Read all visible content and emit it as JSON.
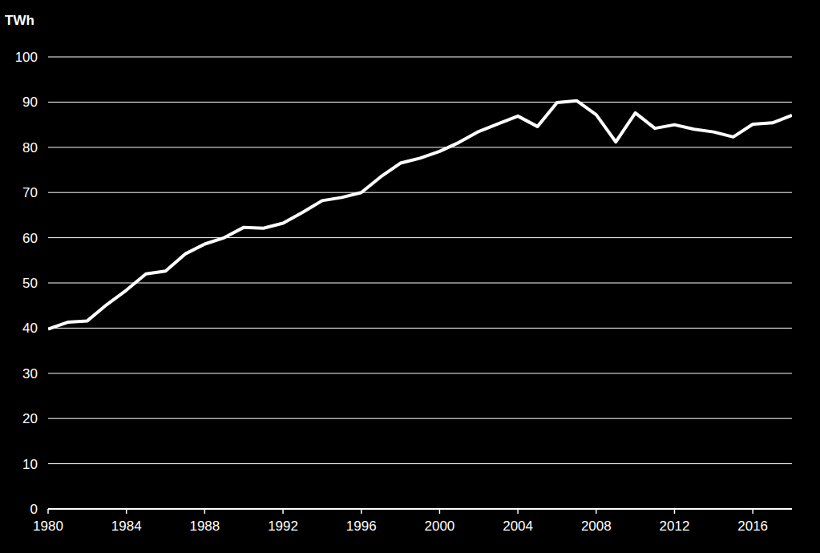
{
  "chart_data": {
    "type": "line",
    "y_label": "TWh",
    "color": "#ffffff",
    "grid": true,
    "x": [
      1980,
      1981,
      1982,
      1983,
      1984,
      1985,
      1986,
      1987,
      1988,
      1989,
      1990,
      1991,
      1992,
      1993,
      1994,
      1995,
      1996,
      1997,
      1998,
      1999,
      2000,
      2001,
      2002,
      2003,
      2004,
      2005,
      2006,
      2007,
      2008,
      2009,
      2010,
      2011,
      2012,
      2013,
      2014,
      2015,
      2016,
      2017,
      2018
    ],
    "values": [
      39.8,
      41.3,
      41.6,
      45.2,
      48.4,
      52.0,
      52.6,
      56.4,
      58.6,
      60.0,
      62.3,
      62.1,
      63.2,
      65.6,
      68.2,
      68.9,
      70.0,
      73.5,
      76.5,
      77.6,
      79.1,
      81.1,
      83.5,
      85.2,
      86.9,
      84.6,
      89.9,
      90.3,
      87.2,
      81.2,
      87.6,
      84.2,
      85.0,
      84.0,
      83.4,
      82.3,
      85.1,
      85.4,
      87.1
    ],
    "xlim": [
      1980,
      2018
    ],
    "xticks": [
      1980,
      1984,
      1988,
      1992,
      1996,
      2000,
      2004,
      2008,
      2012,
      2016
    ],
    "ylim": [
      0,
      100
    ],
    "yticks": [
      0,
      10,
      20,
      30,
      40,
      50,
      60,
      70,
      80,
      90,
      100
    ]
  }
}
